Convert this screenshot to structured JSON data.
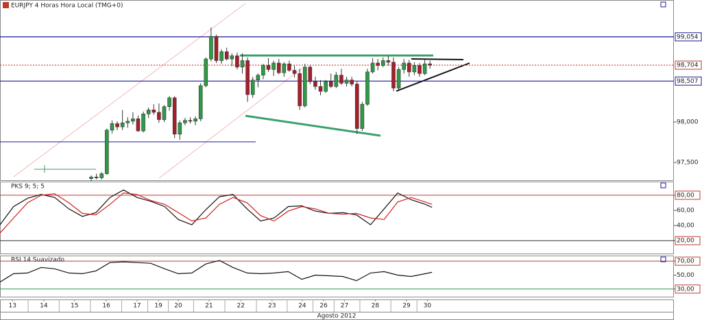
{
  "chart_data": {
    "type": "candlestick",
    "title": "EURJPY 4 Horas Hora Local (TMG+0)",
    "x_axis_label": "Agosto 2012",
    "up_color": "#2f9a45",
    "down_color": "#a51f2b",
    "xlim": [
      -17.5,
      111.8
    ],
    "xticks": [
      {
        "value": -15.1,
        "label": "13"
      },
      {
        "value": -9.1,
        "label": "14"
      },
      {
        "value": -3.2,
        "label": "15"
      },
      {
        "value": 2.9,
        "label": "16"
      },
      {
        "value": 8.8,
        "label": "17"
      },
      {
        "value": 12.9,
        "label": "19"
      },
      {
        "value": 16.7,
        "label": "20"
      },
      {
        "value": 22.6,
        "label": "21"
      },
      {
        "value": 28.7,
        "label": "22"
      },
      {
        "value": 34.7,
        "label": "23"
      },
      {
        "value": 40.5,
        "label": "24"
      },
      {
        "value": 44.6,
        "label": "26"
      },
      {
        "value": 48.6,
        "label": "27"
      },
      {
        "value": 54.5,
        "label": "28"
      },
      {
        "value": 60.5,
        "label": "29"
      },
      {
        "value": 64.5,
        "label": "30"
      }
    ],
    "ylim": [
      97280,
      99510
    ],
    "yticks": [
      {
        "value": 97500,
        "label": "97,500"
      },
      {
        "value": 98000,
        "label": "98,000"
      }
    ],
    "levels": [
      {
        "value": 99054,
        "label": "99,054",
        "color": "#1a1a9a"
      },
      {
        "value": 98704,
        "label": "98,704",
        "color": "#c0392b"
      },
      {
        "value": 98507,
        "label": "98,507",
        "color": "#1a1a9a"
      }
    ],
    "x": [
      0,
      1,
      2,
      3,
      4,
      5,
      6,
      7,
      8,
      9,
      10,
      11,
      12,
      13,
      14,
      15,
      16,
      17,
      18,
      19,
      20,
      21,
      22,
      23,
      24,
      25,
      26,
      27,
      28,
      29,
      30,
      31,
      32,
      33,
      34,
      35,
      36,
      37,
      38,
      39,
      40,
      41,
      42,
      43,
      44,
      45,
      46,
      47,
      48,
      49,
      50,
      51,
      52,
      53,
      54,
      55,
      56,
      57,
      58,
      59,
      60,
      61,
      62,
      63,
      64,
      65
    ],
    "open": [
      97300,
      97320,
      97310,
      97360,
      97900,
      97980,
      97940,
      97990,
      98010,
      98040,
      97890,
      98100,
      98150,
      98120,
      98030,
      98190,
      98300,
      97850,
      97990,
      98020,
      98010,
      98040,
      98450,
      98780,
      99060,
      98760,
      98870,
      98780,
      98820,
      98680,
      98760,
      98340,
      98520,
      98580,
      98700,
      98650,
      98730,
      98610,
      98720,
      98640,
      98600,
      98200,
      98680,
      98500,
      98440,
      98380,
      98500,
      98440,
      98580,
      98480,
      98520,
      98470,
      97920,
      98220,
      98620,
      98730,
      98700,
      98760,
      98740,
      98420,
      98650,
      98730,
      98620,
      98700,
      98600,
      98720
    ],
    "high": [
      97340,
      97360,
      97380,
      97920,
      98020,
      98010,
      98150,
      98060,
      98120,
      98080,
      98130,
      98180,
      98220,
      98230,
      98210,
      98320,
      98320,
      98020,
      98050,
      98060,
      98070,
      98480,
      98800,
      99170,
      99080,
      98900,
      98920,
      98850,
      98860,
      98850,
      98800,
      98560,
      98600,
      98720,
      98790,
      98760,
      98780,
      98740,
      98760,
      98700,
      98660,
      98720,
      98700,
      98560,
      98520,
      98520,
      98600,
      98620,
      98660,
      98560,
      98560,
      98500,
      98250,
      98660,
      98790,
      98780,
      98800,
      98820,
      98800,
      98680,
      98780,
      98770,
      98740,
      98730,
      98770,
      98760
    ],
    "low": [
      97270,
      97290,
      97290,
      97350,
      97860,
      97900,
      97900,
      97930,
      97970,
      97880,
      97870,
      98050,
      98090,
      97990,
      98000,
      98140,
      97800,
      97780,
      97960,
      97980,
      97960,
      98010,
      98430,
      98750,
      98730,
      98720,
      98760,
      98690,
      98650,
      98600,
      98250,
      98300,
      98430,
      98530,
      98620,
      98570,
      98590,
      98560,
      98620,
      98550,
      98150,
      98180,
      98470,
      98400,
      98330,
      98360,
      98420,
      98420,
      98460,
      98440,
      98440,
      97850,
      97890,
      98200,
      98600,
      98640,
      98680,
      98700,
      98380,
      98400,
      98600,
      98560,
      98580,
      98560,
      98580,
      98660
    ],
    "close": [
      97320,
      97310,
      97360,
      97900,
      97980,
      97940,
      97990,
      98010,
      98040,
      97890,
      98100,
      98150,
      98120,
      98030,
      98190,
      98300,
      97850,
      97990,
      98020,
      98010,
      98040,
      98450,
      98780,
      99060,
      98760,
      98870,
      98780,
      98820,
      98680,
      98760,
      98340,
      98520,
      98580,
      98700,
      98650,
      98730,
      98610,
      98720,
      98640,
      98600,
      98200,
      98680,
      98500,
      98440,
      98380,
      98500,
      98440,
      98580,
      98480,
      98520,
      98470,
      97920,
      98220,
      98620,
      98730,
      98700,
      98760,
      98740,
      98420,
      98650,
      98730,
      98620,
      98700,
      98600,
      98720,
      98704
    ],
    "indicators": [
      {
        "title": "PKS 9; 5; 5",
        "ylim": [
          3,
          98
        ],
        "yticks": [
          {
            "value": 80,
            "label": "80,00"
          },
          {
            "value": 60,
            "label": "60,00"
          },
          {
            "value": 40,
            "label": "40,00"
          },
          {
            "value": 20,
            "label": "20,00"
          }
        ],
        "levels": [
          {
            "value": 80,
            "color": "#c0392b"
          },
          {
            "value": 20,
            "color": "#333333"
          }
        ],
        "x": [
          -17.5,
          -14.9,
          -12.2,
          -9.6,
          -7,
          -4.3,
          -1.7,
          0.9,
          3.6,
          6.2,
          8.8,
          11.4,
          14.1,
          16.7,
          19.3,
          22,
          24.6,
          27.2,
          29.9,
          32.5,
          35.1,
          37.8,
          40.4,
          43,
          45.7,
          48.3,
          50.9,
          53.6,
          56.2,
          58.8,
          61.4,
          64.1,
          65.4
        ],
        "series": [
          {
            "color": "#111111",
            "values": [
              41,
              65,
              76,
              81,
              77,
              62,
              52,
              57,
              77,
              87,
              77,
              72,
              65,
              48,
              41,
              61,
              78,
              81,
              62,
              46,
              50,
              65,
              66,
              59,
              56,
              57,
              54,
              41,
              62,
              83,
              74,
              68,
              64
            ]
          },
          {
            "color": "#d42020",
            "values": [
              30,
              50,
              70,
              80,
              82,
              70,
              56,
              54,
              68,
              83,
              81,
              73,
              68,
              57,
              46,
              50,
              68,
              77,
              70,
              53,
              46,
              59,
              65,
              62,
              56,
              55,
              56,
              50,
              48,
              71,
              77,
              71,
              68
            ]
          }
        ]
      },
      {
        "title": "RSI 14 Suavizado",
        "ylim": [
          19,
          77
        ],
        "yticks": [
          {
            "value": 70,
            "label": "70,00"
          },
          {
            "value": 50,
            "label": "50,00"
          },
          {
            "value": 30,
            "label": "30,00"
          }
        ],
        "levels": [
          {
            "value": 70,
            "color": "#c0392b"
          },
          {
            "value": 30,
            "color": "#2f9a45"
          }
        ],
        "x": [
          -17.5,
          -14.9,
          -12.2,
          -9.6,
          -7,
          -4.3,
          -1.7,
          0.9,
          3.6,
          6.2,
          8.8,
          11.4,
          14.1,
          16.7,
          19.3,
          22,
          24.6,
          27.2,
          29.9,
          32.5,
          35.1,
          37.8,
          40.4,
          43,
          45.7,
          48.3,
          50.9,
          53.6,
          56.2,
          58.8,
          61.4,
          64.1,
          65.4
        ],
        "series": [
          {
            "color": "#111111",
            "values": [
              40,
              52,
              53,
              61,
              59,
              53,
              52,
              56,
              68,
              69,
              68,
              67,
              59,
              52,
              53,
              66,
              71,
              61,
              53,
              52,
              53,
              55,
              44,
              50,
              49,
              48,
              42,
              53,
              55,
              50,
              48,
              52,
              54
            ]
          }
        ]
      }
    ]
  }
}
